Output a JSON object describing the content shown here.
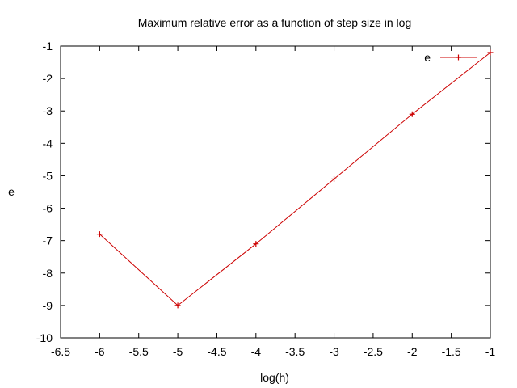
{
  "chart_data": {
    "type": "line",
    "title": "Maximum relative error as a function of step size in log",
    "xlabel": "log(h)",
    "ylabel": "e",
    "xlim": [
      -6.5,
      -1
    ],
    "ylim": [
      -10,
      -1
    ],
    "xticks": [
      "-6.5",
      "-6",
      "-5.5",
      "-5",
      "-4.5",
      "-4",
      "-3.5",
      "-3",
      "-2.5",
      "-2",
      "-1.5",
      "-1"
    ],
    "yticks": [
      "-10",
      "-9",
      "-8",
      "-7",
      "-6",
      "-5",
      "-4",
      "-3",
      "-2",
      "-1"
    ],
    "grid": false,
    "legend": "top-right",
    "series": [
      {
        "name": "e",
        "color": "#cc0000",
        "marker": "plus",
        "x": [
          -6,
          -5,
          -4,
          -3,
          -2,
          -1
        ],
        "y": [
          -6.8,
          -9.0,
          -7.1,
          -5.1,
          -3.1,
          -1.2
        ]
      }
    ]
  }
}
